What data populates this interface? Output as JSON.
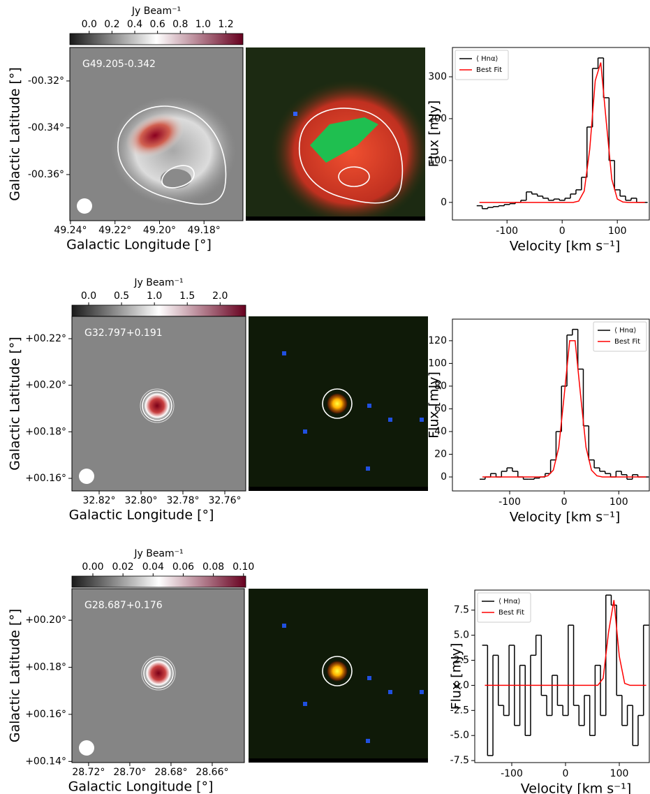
{
  "chart_data": [
    {
      "type": "colorbar",
      "title": "Jy Beam⁻¹",
      "colors": [
        "#1a1a1a",
        "#ffffff",
        "#67001f"
      ],
      "xlim": [
        -0.17,
        1.35
      ],
      "xticks": [
        {
          "value": 0,
          "label": "0.0"
        },
        0.2,
        0.4,
        0.6,
        0.8,
        {
          "value": 1,
          "label": "1.0"
        },
        1.2
      ]
    },
    {
      "type": "map",
      "annotation": "G49.205-0.342",
      "xlabel": "Galactic Longitude [°]",
      "ylabel": "Galactic Latitude [°]",
      "xlim": [
        49.2403,
        49.1625
      ],
      "ylim": [
        -0.3797,
        -0.3057
      ],
      "xticks": [
        {
          "value": 49.24,
          "label": "49.24°"
        },
        {
          "value": 49.22,
          "label": "49.22°"
        },
        {
          "value": 49.2,
          "label": "49.20°"
        },
        {
          "value": 49.18,
          "label": "49.18°"
        }
      ],
      "yticks": [
        {
          "value": -0.32,
          "label": "-00.32°"
        },
        {
          "value": -0.34,
          "label": "-00.34°"
        },
        {
          "value": -0.36,
          "label": "-00.36°"
        }
      ]
    },
    {
      "type": "line",
      "xlabel": "Velocity [km s⁻¹]",
      "ylabel": "Flux [mJy]",
      "legend": "upper left",
      "x": [
        -150,
        -140,
        -130,
        -120,
        -110,
        -100,
        -90,
        -80,
        -70,
        -60,
        -50,
        -40,
        -30,
        -20,
        -10,
        0,
        10,
        20,
        30,
        40,
        50,
        60,
        70,
        80,
        90,
        100,
        110,
        120,
        130,
        140,
        150
      ],
      "series": [
        {
          "name": "⟨ Hnα⟩",
          "color": "#000000",
          "step": true,
          "values": [
            -8,
            -15,
            -12,
            -10,
            -8,
            -5,
            -3,
            0,
            5,
            25,
            20,
            15,
            10,
            5,
            8,
            5,
            10,
            20,
            30,
            60,
            180,
            320,
            345,
            250,
            100,
            30,
            15,
            5,
            10,
            0,
            0
          ]
        },
        {
          "name": "Best Fit",
          "color": "#ff0000",
          "values": [
            0,
            0,
            0,
            0,
            0,
            0,
            0,
            0,
            0,
            0,
            0,
            0,
            0,
            0,
            0,
            0,
            0,
            0,
            3,
            27,
            127,
            291,
            334,
            192,
            55,
            8,
            1,
            0,
            0,
            0,
            0
          ]
        }
      ],
      "xlim": [
        -199,
        158
      ],
      "ylim": [
        -42,
        370
      ],
      "xticks": [
        -100,
        0,
        100
      ],
      "yticks": [
        0,
        100,
        200,
        300
      ]
    },
    {
      "type": "colorbar",
      "title": "Jy Beam⁻¹",
      "colors": [
        "#1a1a1a",
        "#ffffff",
        "#67001f"
      ],
      "xlim": [
        -0.255,
        2.39
      ],
      "xticks": [
        {
          "value": 0,
          "label": "0.0"
        },
        0.5,
        {
          "value": 1,
          "label": "1.0"
        },
        1.5,
        {
          "value": 2,
          "label": "2.0"
        }
      ]
    },
    {
      "type": "map",
      "annotation": "G32.797+0.191",
      "xlabel": "Galactic Longitude [°]",
      "ylabel": "Galactic Latitude [°]",
      "xlim": [
        32.833,
        32.75
      ],
      "ylim": [
        0.1546,
        0.2296
      ],
      "xticks": [
        {
          "value": 32.82,
          "label": "32.82°"
        },
        {
          "value": 32.8,
          "label": "32.80°"
        },
        {
          "value": 32.78,
          "label": "32.78°"
        },
        {
          "value": 32.76,
          "label": "32.76°"
        }
      ],
      "yticks": [
        {
          "value": 0.22,
          "label": "+00.22°"
        },
        {
          "value": 0.2,
          "label": "+00.20°"
        },
        {
          "value": 0.18,
          "label": "+00.18°"
        },
        {
          "value": 0.16,
          "label": "+00.16°"
        }
      ]
    },
    {
      "type": "line",
      "xlabel": "Velocity [km s⁻¹]",
      "ylabel": "Flux [mJy]",
      "legend": "upper right",
      "x": [
        -150,
        -140,
        -130,
        -120,
        -110,
        -100,
        -90,
        -80,
        -70,
        -60,
        -50,
        -40,
        -30,
        -20,
        -10,
        0,
        10,
        20,
        30,
        40,
        50,
        60,
        70,
        80,
        90,
        100,
        110,
        120,
        130,
        140,
        150
      ],
      "series": [
        {
          "name": "⟨ Hnα⟩",
          "color": "#000000",
          "step": true,
          "values": [
            -2,
            0,
            3,
            0,
            5,
            8,
            5,
            0,
            -2,
            -2,
            -1,
            0,
            3,
            15,
            40,
            80,
            125,
            130,
            95,
            45,
            15,
            8,
            5,
            3,
            0,
            5,
            2,
            -2,
            2,
            0,
            0
          ]
        },
        {
          "name": "Best Fit",
          "color": "#ff0000",
          "values": [
            0,
            0,
            0,
            0,
            0,
            0,
            0,
            0,
            0,
            0,
            0,
            0,
            1,
            6,
            26,
            72,
            120,
            120,
            72,
            26,
            6,
            1,
            0,
            0,
            0,
            0,
            0,
            0,
            0,
            0,
            0
          ]
        }
      ],
      "xlim": [
        -205,
        156
      ],
      "ylim": [
        -12.3,
        139
      ],
      "xticks": [
        -100,
        0,
        100
      ],
      "yticks": [
        0,
        20,
        40,
        60,
        80,
        100,
        120
      ]
    },
    {
      "type": "colorbar",
      "title": "Jy Beam⁻¹",
      "colors": [
        "#1a1a1a",
        "#ffffff",
        "#67001f"
      ],
      "xlim": [
        -0.0139,
        0.1015
      ],
      "xticks": [
        {
          "value": 0,
          "label": "0.00"
        },
        0.02,
        0.04,
        0.06,
        0.08,
        {
          "value": 0.1,
          "label": "0.10"
        }
      ]
    },
    {
      "type": "map",
      "annotation": "G28.687+0.176",
      "xlabel": "Galactic Longitude [°]",
      "ylabel": "Galactic Latitude [°]",
      "xlim": [
        28.7281,
        28.6444
      ],
      "ylim": [
        0.1395,
        0.2134
      ],
      "xticks": [
        {
          "value": 28.72,
          "label": "28.72°"
        },
        {
          "value": 28.7,
          "label": "28.70°"
        },
        {
          "value": 28.68,
          "label": "28.68°"
        },
        {
          "value": 28.66,
          "label": "28.66°"
        }
      ],
      "yticks": [
        {
          "value": 0.2,
          "label": "+00.20°"
        },
        {
          "value": 0.18,
          "label": "+00.18°"
        },
        {
          "value": 0.16,
          "label": "+00.16°"
        },
        {
          "value": 0.14,
          "label": "+00.14°"
        }
      ]
    },
    {
      "type": "line",
      "xlabel": "Velocity [km s⁻¹]",
      "ylabel": "Flux [mJy]",
      "legend": "upper left",
      "x": [
        -150,
        -140,
        -130,
        -120,
        -110,
        -100,
        -90,
        -80,
        -70,
        -60,
        -50,
        -40,
        -30,
        -20,
        -10,
        0,
        10,
        20,
        30,
        40,
        50,
        60,
        70,
        80,
        90,
        100,
        110,
        120,
        130,
        140,
        150
      ],
      "series": [
        {
          "name": "⟨ Hnα⟩",
          "color": "#000000",
          "step": true,
          "values": [
            4,
            -7,
            3,
            -2,
            -3,
            4,
            -4,
            2,
            -5,
            3,
            5,
            -1,
            -3,
            1,
            -2,
            -3,
            6,
            -2,
            -4,
            -1,
            -5,
            2,
            -3,
            9,
            8,
            -1,
            -4,
            -2,
            -6,
            -3,
            6
          ]
        },
        {
          "name": "Best Fit",
          "color": "#ff0000",
          "values": [
            0,
            0,
            0,
            0,
            0,
            0,
            0,
            0,
            0,
            0,
            0,
            0,
            0,
            0,
            0,
            0,
            0,
            0,
            0,
            0,
            0,
            0,
            0.7,
            5.3,
            8.5,
            2.9,
            0.2,
            0,
            0,
            0,
            0
          ]
        }
      ],
      "xlim": [
        -168.8,
        155.8
      ],
      "ylim": [
        -7.7,
        9.5
      ],
      "xticks": [
        -100,
        0,
        100
      ],
      "yticks": [
        -7.5,
        {
          "value": -5,
          "label": "-5.0"
        },
        -2.5,
        {
          "value": 0,
          "label": "0.0"
        },
        2.5,
        {
          "value": 5,
          "label": "5.0"
        },
        7.5
      ]
    }
  ]
}
